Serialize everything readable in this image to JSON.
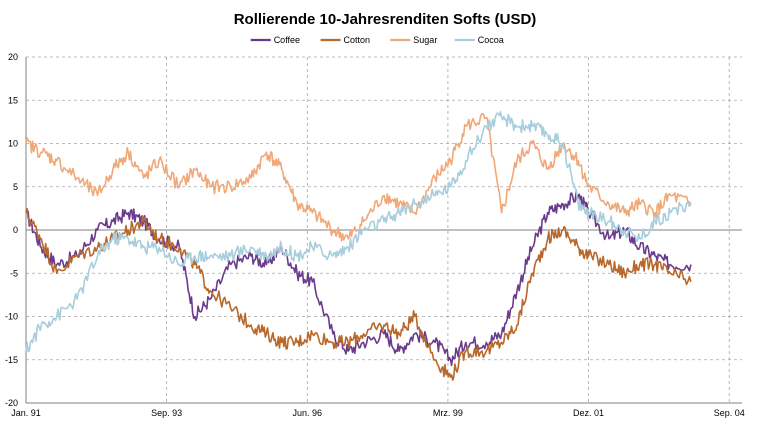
{
  "chart_data": {
    "type": "line",
    "title": "Rollierende 10-Jahresrenditen Softs (USD)",
    "xlabel": "",
    "ylabel": "",
    "x_ticks": [
      "Jan. 91",
      "Sep. 93",
      "Jun. 96",
      "Mrz. 99",
      "Dez. 01",
      "Sep. 04"
    ],
    "ylim": [
      -20,
      20
    ],
    "y_ticks": [
      -20,
      -15,
      -10,
      -5,
      0,
      5,
      10,
      15,
      20
    ],
    "grid": "dashed",
    "legend_position": "top-center",
    "series": [
      {
        "name": "Coffee",
        "color": "#6b3a8c",
        "x": [
          1991.0,
          1991.3,
          1991.6,
          1992.0,
          1992.4,
          1992.7,
          1993.0,
          1993.3,
          1993.6,
          1994.0,
          1994.3,
          1994.6,
          1995.0,
          1995.4,
          1995.7,
          1996.0,
          1996.3,
          1996.6,
          1997.0,
          1997.3,
          1997.6,
          1998.0,
          1998.3,
          1998.6,
          1999.0,
          1999.3,
          1999.6,
          2000.0,
          2000.3,
          2000.6,
          2000.9,
          2001.2,
          2001.5,
          2001.8,
          2002.0,
          2002.4,
          2002.7,
          2003.0,
          2003.3,
          2003.6,
          2004.0
        ],
        "values": [
          2,
          -2,
          -4,
          -3,
          0,
          1,
          2,
          1,
          -1,
          -2,
          -10,
          -8,
          -4,
          -3,
          -4,
          -2,
          -5,
          -6,
          -12,
          -14,
          -13,
          -12,
          -14,
          -12,
          -13,
          -15,
          -13,
          -13,
          -12,
          -7,
          -2,
          2,
          3,
          4,
          2,
          -1,
          0,
          -2,
          -3,
          -4,
          -4
        ]
      },
      {
        "name": "Cotton",
        "color": "#b8682a",
        "x": [
          1991.0,
          1991.3,
          1991.6,
          1992.0,
          1992.4,
          1992.7,
          1993.0,
          1993.3,
          1993.6,
          1994.0,
          1994.3,
          1994.6,
          1995.0,
          1995.4,
          1995.7,
          1996.0,
          1996.3,
          1996.6,
          1997.0,
          1997.3,
          1997.6,
          1998.0,
          1998.3,
          1998.6,
          1999.0,
          1999.3,
          1999.6,
          2000.0,
          2000.3,
          2000.6,
          2000.9,
          2001.2,
          2001.5,
          2001.8,
          2002.0,
          2002.4,
          2002.7,
          2003.0,
          2003.3,
          2003.6,
          2004.0
        ],
        "values": [
          2,
          -1,
          -5,
          -3,
          -2,
          -1,
          0,
          1,
          -1,
          -2,
          -4,
          -7,
          -9,
          -11,
          -12,
          -13,
          -13,
          -12,
          -13,
          -13,
          -12,
          -11,
          -12,
          -10,
          -15,
          -17,
          -14,
          -14,
          -13,
          -11,
          -5,
          -1,
          0,
          -2,
          -3,
          -4,
          -5,
          -4,
          -4,
          -5,
          -6
        ]
      },
      {
        "name": "Sugar",
        "color": "#f0a878",
        "x": [
          1991.0,
          1991.3,
          1991.6,
          1992.0,
          1992.4,
          1992.7,
          1993.0,
          1993.3,
          1993.6,
          1994.0,
          1994.3,
          1994.6,
          1995.0,
          1995.4,
          1995.7,
          1996.0,
          1996.3,
          1996.6,
          1997.0,
          1997.3,
          1997.6,
          1998.0,
          1998.3,
          1998.6,
          1999.0,
          1999.3,
          1999.6,
          2000.0,
          2000.3,
          2000.6,
          2000.9,
          2001.2,
          2001.5,
          2001.8,
          2002.0,
          2002.4,
          2002.7,
          2003.0,
          2003.3,
          2003.6,
          2004.0
        ],
        "values": [
          10,
          9,
          8,
          6,
          4,
          7,
          9,
          6,
          8,
          5,
          7,
          5,
          5,
          6,
          9,
          7,
          3,
          2,
          0,
          -1,
          1,
          4,
          3,
          2,
          6,
          8,
          12,
          13,
          2,
          8,
          10,
          7,
          10,
          8,
          5,
          3,
          2,
          3,
          2,
          4,
          3
        ]
      },
      {
        "name": "Cocoa",
        "color": "#a8cede",
        "x": [
          1991.0,
          1991.3,
          1991.6,
          1992.0,
          1992.4,
          1992.7,
          1993.0,
          1993.3,
          1993.6,
          1994.0,
          1994.3,
          1994.6,
          1995.0,
          1995.4,
          1995.7,
          1996.0,
          1996.3,
          1996.6,
          1997.0,
          1997.3,
          1997.6,
          1998.0,
          1998.3,
          1998.6,
          1999.0,
          1999.3,
          1999.6,
          2000.0,
          2000.3,
          2000.6,
          2000.9,
          2001.2,
          2001.5,
          2001.8,
          2002.0,
          2002.4,
          2002.7,
          2003.0,
          2003.3,
          2003.6,
          2004.0
        ],
        "values": [
          -14,
          -11,
          -10,
          -8,
          -3,
          -1,
          -1,
          -2,
          -2,
          -4,
          -3,
          -3,
          -3,
          -2,
          -3,
          -2,
          -3,
          -2,
          -3,
          -2,
          0,
          1,
          2,
          3,
          4,
          5,
          8,
          12,
          13,
          12,
          12,
          11,
          10,
          3,
          2,
          1,
          0,
          -1,
          1,
          2,
          3
        ]
      }
    ]
  }
}
